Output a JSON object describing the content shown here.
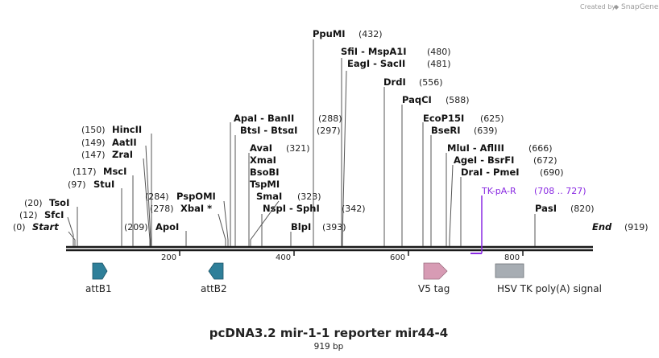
{
  "credit": "Created by",
  "brand": "SnapGene",
  "title": "pcDNA3.2 mir-1-1 reporter mir44-4",
  "length_label": "919 bp",
  "start_label": "Start",
  "start_pos": "(0)",
  "end_label": "End",
  "end_pos": "(919)",
  "ticks": [
    "200",
    "400",
    "600",
    "800"
  ],
  "sites": [
    {
      "name": "TsoI",
      "pos": "(20)"
    },
    {
      "name": "SfcI",
      "pos": "(12)"
    },
    {
      "name": "StuI",
      "pos": "(97)"
    },
    {
      "name": "MscI",
      "pos": "(117)"
    },
    {
      "name": "ZraI",
      "pos": "(147)"
    },
    {
      "name": "AatII",
      "pos": "(149)"
    },
    {
      "name": "HincII",
      "pos": "(150)"
    },
    {
      "name": "ApoI",
      "pos": "(209)"
    },
    {
      "name": "PspOMI",
      "pos": "(284)"
    },
    {
      "name": "XbaI *",
      "pos": "(278)"
    },
    {
      "name": "ApaI  -  BanII",
      "pos": "(288)"
    },
    {
      "name": "BtsI  -  BtsαI",
      "pos": "(297)"
    },
    {
      "name": "AvaI",
      "pos": "(321)"
    },
    {
      "name": "XmaI",
      "pos": ""
    },
    {
      "name": "BsoBI",
      "pos": ""
    },
    {
      "name": "TspMI",
      "pos": ""
    },
    {
      "name": "SmaI",
      "pos": "(323)"
    },
    {
      "name": "NspI  -  SphI",
      "pos": "(342)"
    },
    {
      "name": "BlpI",
      "pos": "(393)"
    },
    {
      "name": "PpuMI",
      "pos": "(432)"
    },
    {
      "name": "SfiI  -  MspA1I",
      "pos": "(480)"
    },
    {
      "name": "EagI  -  SacII",
      "pos": "(481)"
    },
    {
      "name": "DrdI",
      "pos": "(556)"
    },
    {
      "name": "PaqCI",
      "pos": "(588)"
    },
    {
      "name": "EcoP15I",
      "pos": "(625)"
    },
    {
      "name": "BseRI",
      "pos": "(639)"
    },
    {
      "name": "MluI  -  AflIII",
      "pos": "(666)"
    },
    {
      "name": "AgeI  -  BsrFI",
      "pos": "(672)"
    },
    {
      "name": "DraI  -  PmeI",
      "pos": "(690)"
    },
    {
      "name": "PasI",
      "pos": "(820)"
    }
  ],
  "primer": {
    "name": "TK-pA-R",
    "range": "(708 .. 727)"
  },
  "features": [
    {
      "name": "attB1"
    },
    {
      "name": "attB2"
    },
    {
      "name": "V5 tag"
    },
    {
      "name": "HSV TK poly(A) signal"
    }
  ],
  "colors": {
    "attB": "#2f7f99",
    "v5": "#d79bb4",
    "polyA": "#a7adb3",
    "primer": "#8a2be2",
    "line": "#1a1a1a"
  }
}
